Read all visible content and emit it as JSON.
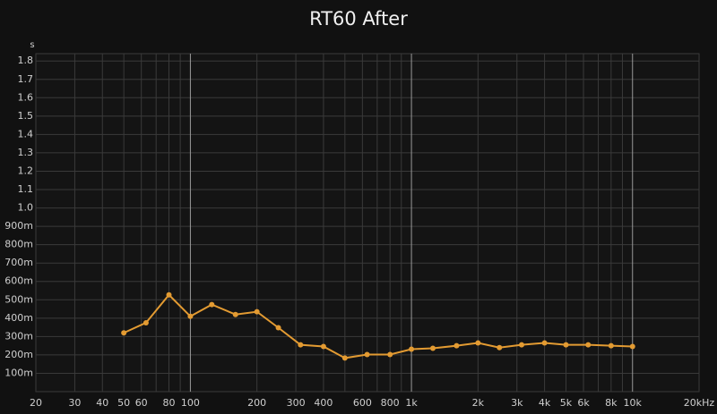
{
  "chart_data": {
    "type": "line",
    "title": "RT60 After",
    "y_label": "s",
    "x": [
      50,
      63,
      80,
      100,
      125,
      160,
      200,
      250,
      315,
      400,
      500,
      630,
      800,
      1000,
      1250,
      1600,
      2000,
      2500,
      3150,
      4000,
      5000,
      6300,
      8000,
      10000
    ],
    "series": [
      {
        "color": "#e39b32",
        "values": [
          0.32,
          0.375,
          0.527,
          0.41,
          0.474,
          0.42,
          0.435,
          0.348,
          0.255,
          0.246,
          0.183,
          0.202,
          0.202,
          0.231,
          0.236,
          0.25,
          0.265,
          0.24,
          0.255,
          0.265,
          0.255,
          0.255,
          0.25,
          0.246
        ]
      }
    ],
    "xlim": [
      20,
      20000
    ],
    "x_log": true,
    "xticks": [
      20,
      30,
      40,
      50,
      60,
      80,
      100,
      200,
      300,
      400,
      600,
      800,
      {
        "value": 1000,
        "label": "1k"
      },
      {
        "value": 2000,
        "label": "2k"
      },
      {
        "value": 3000,
        "label": "3k"
      },
      {
        "value": 4000,
        "label": "4k"
      },
      {
        "value": 5000,
        "label": "5k"
      },
      {
        "value": 6000,
        "label": "6k"
      },
      {
        "value": 8000,
        "label": "8k"
      },
      {
        "value": 10000,
        "label": "10k"
      },
      {
        "value": 20000,
        "label": "20kHz"
      }
    ],
    "xticks_minor": [
      70,
      90,
      500,
      700,
      900,
      7000,
      9000
    ],
    "ylim": [
      0,
      1.84
    ],
    "yticks": [
      {
        "value": 0.1,
        "label": "100m"
      },
      {
        "value": 0.2,
        "label": "200m"
      },
      {
        "value": 0.3,
        "label": "300m"
      },
      {
        "value": 0.4,
        "label": "400m"
      },
      {
        "value": 0.5,
        "label": "500m"
      },
      {
        "value": 0.6,
        "label": "600m"
      },
      {
        "value": 0.7,
        "label": "700m"
      },
      {
        "value": 0.8,
        "label": "800m"
      },
      {
        "value": 0.9,
        "label": "900m"
      },
      {
        "value": 1.0,
        "label": "1.0"
      },
      1.1,
      1.2,
      1.3,
      1.4,
      1.5,
      1.6,
      1.7,
      1.8
    ],
    "grid": true
  }
}
